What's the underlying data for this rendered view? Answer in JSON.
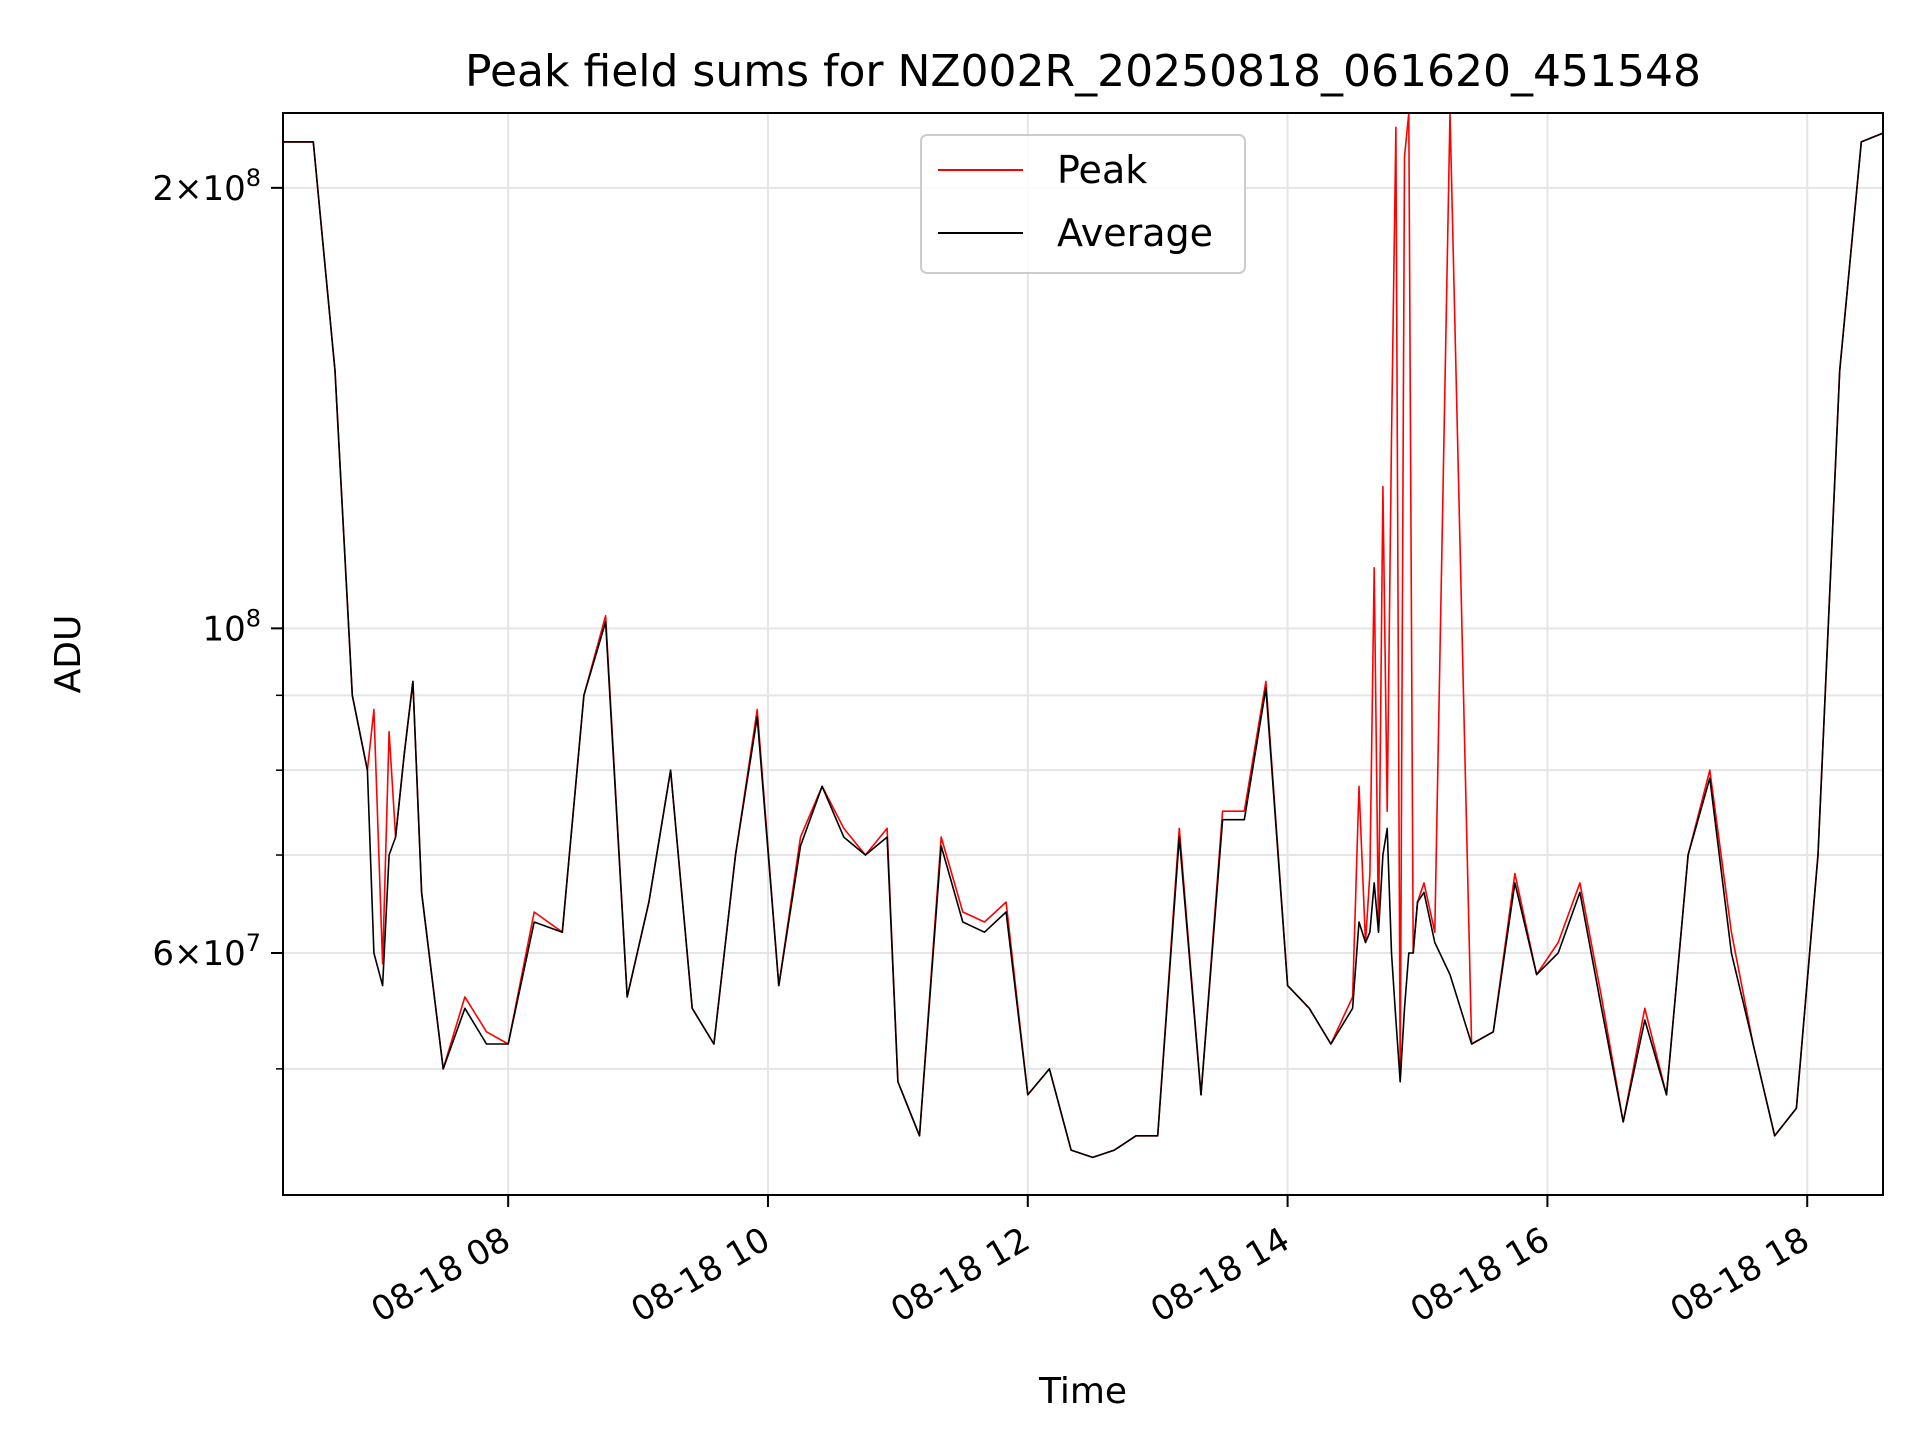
{
  "chart_data": {
    "type": "line",
    "title": "Peak field sums for NZ002R_20250818_061620_451548",
    "xlabel": "Time",
    "ylabel": "ADU",
    "yscale": "log",
    "ylim": [
      41000000,
      225000000
    ],
    "xlim": [
      "2025-08-18 06:16",
      "2025-08-18 18:35"
    ],
    "grid": true,
    "legend_position": "top-center",
    "x_ticks": [
      {
        "t": "2025-08-18 08:00",
        "label": "08-18 08"
      },
      {
        "t": "2025-08-18 10:00",
        "label": "08-18 10"
      },
      {
        "t": "2025-08-18 12:00",
        "label": "08-18 12"
      },
      {
        "t": "2025-08-18 14:00",
        "label": "08-18 14"
      },
      {
        "t": "2025-08-18 16:00",
        "label": "08-18 16"
      },
      {
        "t": "2025-08-18 18:00",
        "label": "08-18 18"
      }
    ],
    "y_ticks": [
      {
        "value": 60000000,
        "mantissa": "6",
        "exponent": "7"
      },
      {
        "value": 100000000,
        "mantissa": "",
        "exponent": "8"
      },
      {
        "value": 200000000,
        "mantissa": "2",
        "exponent": "8"
      }
    ],
    "y_minor_grid": [
      50000000,
      70000000,
      80000000,
      90000000
    ],
    "series": [
      {
        "name": "Peak",
        "color": "#ff0000",
        "x": [
          "2025-08-18 06:16",
          "2025-08-18 06:30",
          "2025-08-18 06:40",
          "2025-08-18 06:48",
          "2025-08-18 06:55",
          "2025-08-18 06:58",
          "2025-08-18 07:02",
          "2025-08-18 07:05",
          "2025-08-18 07:08",
          "2025-08-18 07:12",
          "2025-08-18 07:16",
          "2025-08-18 07:20",
          "2025-08-18 07:30",
          "2025-08-18 07:40",
          "2025-08-18 07:50",
          "2025-08-18 08:00",
          "2025-08-18 08:12",
          "2025-08-18 08:25",
          "2025-08-18 08:35",
          "2025-08-18 08:45",
          "2025-08-18 08:55",
          "2025-08-18 09:05",
          "2025-08-18 09:15",
          "2025-08-18 09:25",
          "2025-08-18 09:35",
          "2025-08-18 09:45",
          "2025-08-18 09:55",
          "2025-08-18 10:05",
          "2025-08-18 10:15",
          "2025-08-18 10:25",
          "2025-08-18 10:35",
          "2025-08-18 10:45",
          "2025-08-18 10:55",
          "2025-08-18 11:00",
          "2025-08-18 11:10",
          "2025-08-18 11:20",
          "2025-08-18 11:30",
          "2025-08-18 11:40",
          "2025-08-18 11:50",
          "2025-08-18 12:00",
          "2025-08-18 12:10",
          "2025-08-18 12:20",
          "2025-08-18 12:30",
          "2025-08-18 12:40",
          "2025-08-18 12:50",
          "2025-08-18 13:00",
          "2025-08-18 13:10",
          "2025-08-18 13:20",
          "2025-08-18 13:30",
          "2025-08-18 13:40",
          "2025-08-18 13:50",
          "2025-08-18 14:00",
          "2025-08-18 14:10",
          "2025-08-18 14:20",
          "2025-08-18 14:30",
          "2025-08-18 14:33",
          "2025-08-18 14:36",
          "2025-08-18 14:38",
          "2025-08-18 14:40",
          "2025-08-18 14:42",
          "2025-08-18 14:44",
          "2025-08-18 14:46",
          "2025-08-18 14:48",
          "2025-08-18 14:50",
          "2025-08-18 14:52",
          "2025-08-18 14:54",
          "2025-08-18 14:56",
          "2025-08-18 14:58",
          "2025-08-18 15:00",
          "2025-08-18 15:03",
          "2025-08-18 15:08",
          "2025-08-18 15:15",
          "2025-08-18 15:25",
          "2025-08-18 15:35",
          "2025-08-18 15:45",
          "2025-08-18 15:55",
          "2025-08-18 16:05",
          "2025-08-18 16:15",
          "2025-08-18 16:25",
          "2025-08-18 16:35",
          "2025-08-18 16:45",
          "2025-08-18 16:55",
          "2025-08-18 17:05",
          "2025-08-18 17:15",
          "2025-08-18 17:25",
          "2025-08-18 17:35",
          "2025-08-18 17:45",
          "2025-08-18 17:55",
          "2025-08-18 18:05",
          "2025-08-18 18:15",
          "2025-08-18 18:25",
          "2025-08-18 18:35"
        ],
        "y": [
          215000000,
          215000000,
          150000000,
          90000000,
          80000000,
          88000000,
          59000000,
          85000000,
          72000000,
          82000000,
          92000000,
          66000000,
          50000000,
          56000000,
          53000000,
          52000000,
          64000000,
          62000000,
          90000000,
          102000000,
          56000000,
          65000000,
          80000000,
          55000000,
          52000000,
          70000000,
          88000000,
          57000000,
          72000000,
          78000000,
          73000000,
          70000000,
          73000000,
          49000000,
          45000000,
          72000000,
          64000000,
          63000000,
          65000000,
          48000000,
          50000000,
          44000000,
          43500000,
          44000000,
          45000000,
          45000000,
          73000000,
          48000000,
          75000000,
          75000000,
          92000000,
          57000000,
          55000000,
          52000000,
          56000000,
          78000000,
          61000000,
          68000000,
          110000000,
          62000000,
          125000000,
          75000000,
          135000000,
          220000000,
          49000000,
          210000000,
          225000000,
          60000000,
          65000000,
          67000000,
          62000000,
          225000000,
          52000000,
          53000000,
          68000000,
          58000000,
          61000000,
          67000000,
          56000000,
          46000000,
          55000000,
          48000000,
          70000000,
          80000000,
          62000000,
          52000000,
          45000000,
          47000000,
          70000000,
          150000000,
          215000000,
          218000000
        ]
      },
      {
        "name": "Average",
        "color": "#000000",
        "x": [
          "2025-08-18 06:16",
          "2025-08-18 06:30",
          "2025-08-18 06:40",
          "2025-08-18 06:48",
          "2025-08-18 06:55",
          "2025-08-18 06:58",
          "2025-08-18 07:02",
          "2025-08-18 07:05",
          "2025-08-18 07:08",
          "2025-08-18 07:12",
          "2025-08-18 07:16",
          "2025-08-18 07:20",
          "2025-08-18 07:30",
          "2025-08-18 07:40",
          "2025-08-18 07:50",
          "2025-08-18 08:00",
          "2025-08-18 08:12",
          "2025-08-18 08:25",
          "2025-08-18 08:35",
          "2025-08-18 08:45",
          "2025-08-18 08:55",
          "2025-08-18 09:05",
          "2025-08-18 09:15",
          "2025-08-18 09:25",
          "2025-08-18 09:35",
          "2025-08-18 09:45",
          "2025-08-18 09:55",
          "2025-08-18 10:05",
          "2025-08-18 10:15",
          "2025-08-18 10:25",
          "2025-08-18 10:35",
          "2025-08-18 10:45",
          "2025-08-18 10:55",
          "2025-08-18 11:00",
          "2025-08-18 11:10",
          "2025-08-18 11:20",
          "2025-08-18 11:30",
          "2025-08-18 11:40",
          "2025-08-18 11:50",
          "2025-08-18 12:00",
          "2025-08-18 12:10",
          "2025-08-18 12:20",
          "2025-08-18 12:30",
          "2025-08-18 12:40",
          "2025-08-18 12:50",
          "2025-08-18 13:00",
          "2025-08-18 13:10",
          "2025-08-18 13:20",
          "2025-08-18 13:30",
          "2025-08-18 13:40",
          "2025-08-18 13:50",
          "2025-08-18 14:00",
          "2025-08-18 14:10",
          "2025-08-18 14:20",
          "2025-08-18 14:30",
          "2025-08-18 14:33",
          "2025-08-18 14:36",
          "2025-08-18 14:38",
          "2025-08-18 14:40",
          "2025-08-18 14:42",
          "2025-08-18 14:44",
          "2025-08-18 14:46",
          "2025-08-18 14:48",
          "2025-08-18 14:50",
          "2025-08-18 14:52",
          "2025-08-18 14:54",
          "2025-08-18 14:56",
          "2025-08-18 14:58",
          "2025-08-18 15:00",
          "2025-08-18 15:03",
          "2025-08-18 15:08",
          "2025-08-18 15:15",
          "2025-08-18 15:25",
          "2025-08-18 15:35",
          "2025-08-18 15:45",
          "2025-08-18 15:55",
          "2025-08-18 16:05",
          "2025-08-18 16:15",
          "2025-08-18 16:25",
          "2025-08-18 16:35",
          "2025-08-18 16:45",
          "2025-08-18 16:55",
          "2025-08-18 17:05",
          "2025-08-18 17:15",
          "2025-08-18 17:25",
          "2025-08-18 17:35",
          "2025-08-18 17:45",
          "2025-08-18 17:55",
          "2025-08-18 18:05",
          "2025-08-18 18:15",
          "2025-08-18 18:25",
          "2025-08-18 18:35"
        ],
        "y": [
          215000000,
          215000000,
          150000000,
          90000000,
          80000000,
          60000000,
          57000000,
          70000000,
          72000000,
          82000000,
          92000000,
          66000000,
          50000000,
          55000000,
          52000000,
          52000000,
          63000000,
          62000000,
          90000000,
          101000000,
          56000000,
          65000000,
          80000000,
          55000000,
          52000000,
          70000000,
          87000000,
          57000000,
          71000000,
          78000000,
          72000000,
          70000000,
          72000000,
          49000000,
          45000000,
          71000000,
          63000000,
          62000000,
          64000000,
          48000000,
          50000000,
          44000000,
          43500000,
          44000000,
          45000000,
          45000000,
          72000000,
          48000000,
          74000000,
          74000000,
          91000000,
          57000000,
          55000000,
          52000000,
          55000000,
          63000000,
          61000000,
          62000000,
          67000000,
          62000000,
          70000000,
          73000000,
          60000000,
          54000000,
          49000000,
          55000000,
          60000000,
          60000000,
          65000000,
          66000000,
          61000000,
          58000000,
          52000000,
          53000000,
          67000000,
          58000000,
          60000000,
          66000000,
          55000000,
          46000000,
          54000000,
          48000000,
          70000000,
          79000000,
          60000000,
          52000000,
          45000000,
          47000000,
          70000000,
          150000000,
          215000000,
          218000000
        ]
      }
    ]
  }
}
